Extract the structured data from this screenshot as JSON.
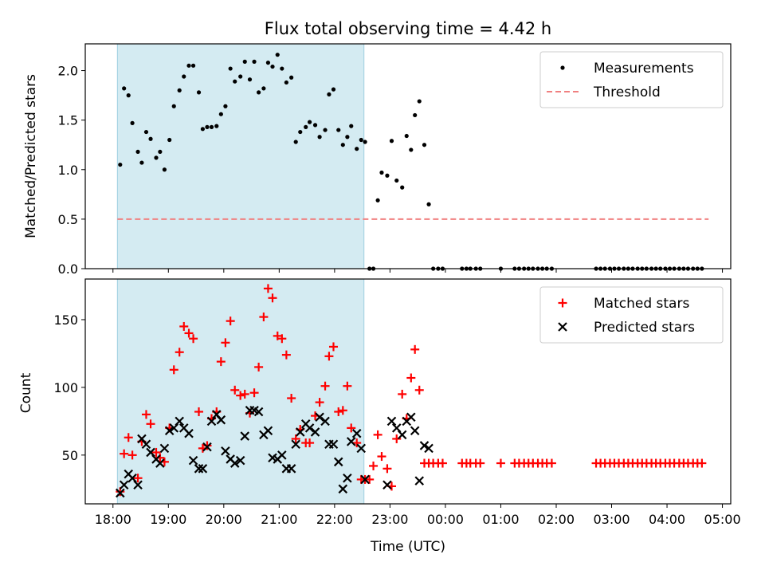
{
  "chart_data": [
    {
      "type": "scatter",
      "title": "Flux total observing time = 4.42 h",
      "xlabel": "",
      "ylabel": "Matched/Predicted stars",
      "xlim": [
        17.5,
        29.15
      ],
      "ylim": [
        0,
        2.27
      ],
      "yticks": [
        0.0,
        0.5,
        1.0,
        1.5,
        2.0
      ],
      "ytick_labels": [
        "0.0",
        "0.5",
        "1.0",
        "1.5",
        "2.0"
      ],
      "highlight_span": [
        18.08,
        22.53
      ],
      "legend": [
        "Measurements",
        "Threshold"
      ],
      "legend_loc": "upper right",
      "series": [
        {
          "name": "Measurements",
          "marker": "dot",
          "color": "#000000",
          "x": [
            18.13,
            18.2,
            18.28,
            18.35,
            18.45,
            18.52,
            18.6,
            18.68,
            18.78,
            18.85,
            18.93,
            19.02,
            19.1,
            19.2,
            19.28,
            19.37,
            19.45,
            19.55,
            19.62,
            19.7,
            19.78,
            19.87,
            19.95,
            20.03,
            20.12,
            20.2,
            20.3,
            20.38,
            20.47,
            20.55,
            20.63,
            20.72,
            20.8,
            20.88,
            20.97,
            21.05,
            21.13,
            21.22,
            21.3,
            21.38,
            21.48,
            21.55,
            21.65,
            21.73,
            21.83,
            21.9,
            21.98,
            22.07,
            22.15,
            22.23,
            22.3,
            22.4,
            22.48,
            22.55,
            22.63,
            22.7,
            22.78,
            22.85,
            22.95,
            23.03,
            23.12,
            23.22,
            23.3,
            23.38,
            23.45,
            23.53,
            23.62,
            23.7,
            23.78,
            23.87,
            23.95,
            24.3,
            24.38,
            24.45,
            24.55,
            24.63,
            25.0,
            25.25,
            25.33,
            25.42,
            25.5,
            25.58,
            25.67,
            25.75,
            25.83,
            25.92,
            26.72,
            26.8,
            26.88,
            26.97,
            27.05,
            27.13,
            27.22,
            27.3,
            27.38,
            27.47,
            27.55,
            27.63,
            27.72,
            27.8,
            27.88,
            27.97,
            28.05,
            28.13,
            28.22,
            28.3,
            28.38,
            28.47,
            28.55,
            28.63
          ],
          "y": [
            1.05,
            1.82,
            1.75,
            1.47,
            1.18,
            1.07,
            1.38,
            1.31,
            1.12,
            1.18,
            1.0,
            1.3,
            1.64,
            1.8,
            1.94,
            2.05,
            2.05,
            1.78,
            1.41,
            1.43,
            1.43,
            1.44,
            1.56,
            1.64,
            2.02,
            1.89,
            1.94,
            2.09,
            1.91,
            2.09,
            1.78,
            1.82,
            2.08,
            2.04,
            2.16,
            2.02,
            1.88,
            1.93,
            1.28,
            1.38,
            1.43,
            1.48,
            1.45,
            1.33,
            1.4,
            1.76,
            1.81,
            1.4,
            1.25,
            1.33,
            1.44,
            1.21,
            1.3,
            1.28,
            0.0,
            0.0,
            0.69,
            0.97,
            0.94,
            1.29,
            0.89,
            0.82,
            1.34,
            1.2,
            1.55,
            1.69,
            1.25,
            0.65,
            0.0,
            0.0,
            0.0,
            0.0,
            0.0,
            0.0,
            0.0,
            0.0,
            0.0,
            0.0,
            0.0,
            0.0,
            0.0,
            0.0,
            0.0,
            0.0,
            0.0,
            0.0,
            0.0,
            0.0,
            0.0,
            0.0,
            0.0,
            0.0,
            0.0,
            0.0,
            0.0,
            0.0,
            0.0,
            0.0,
            0.0,
            0.0,
            0.0,
            0.0,
            0.0,
            0.0,
            0.0,
            0.0,
            0.0,
            0.0,
            0.0,
            0.0
          ]
        },
        {
          "name": "Threshold",
          "style": "dashed",
          "color": "#f08080",
          "x": [
            18.08,
            28.75
          ],
          "y": [
            0.5,
            0.5
          ]
        }
      ]
    },
    {
      "type": "scatter",
      "title": "",
      "xlabel": "Time (UTC)",
      "ylabel": "Count",
      "xlim": [
        17.5,
        29.15
      ],
      "ylim": [
        14,
        180
      ],
      "xticks": [
        18,
        19,
        20,
        21,
        22,
        23,
        24,
        25,
        26,
        27,
        28,
        29
      ],
      "xtick_labels": [
        "18:00",
        "19:00",
        "20:00",
        "21:00",
        "22:00",
        "23:00",
        "00:00",
        "01:00",
        "02:00",
        "03:00",
        "04:00",
        "05:00"
      ],
      "yticks": [
        50,
        100,
        150
      ],
      "ytick_labels": [
        "50",
        "100",
        "150"
      ],
      "highlight_span": [
        18.08,
        22.53
      ],
      "legend": [
        "Matched stars",
        "Predicted stars"
      ],
      "legend_loc": "upper right",
      "series": [
        {
          "name": "Matched stars",
          "marker": "+",
          "color": "#ff0000",
          "x": [
            18.13,
            18.2,
            18.28,
            18.35,
            18.45,
            18.52,
            18.6,
            18.68,
            18.78,
            18.85,
            18.93,
            19.02,
            19.1,
            19.2,
            19.28,
            19.37,
            19.45,
            19.55,
            19.62,
            19.7,
            19.78,
            19.87,
            19.95,
            20.03,
            20.12,
            20.2,
            20.3,
            20.38,
            20.47,
            20.55,
            20.63,
            20.72,
            20.8,
            20.88,
            20.97,
            21.05,
            21.13,
            21.22,
            21.3,
            21.38,
            21.48,
            21.55,
            21.65,
            21.73,
            21.83,
            21.9,
            21.98,
            22.07,
            22.15,
            22.23,
            22.3,
            22.4,
            22.48,
            22.55,
            22.63,
            22.7,
            22.78,
            22.85,
            22.95,
            23.03,
            23.12,
            23.22,
            23.3,
            23.38,
            23.45,
            23.53,
            23.62,
            23.7,
            23.78,
            23.87,
            23.95,
            24.3,
            24.38,
            24.45,
            24.55,
            24.63,
            25.0,
            25.25,
            25.33,
            25.42,
            25.5,
            25.58,
            25.67,
            25.75,
            25.83,
            25.92,
            26.72,
            26.8,
            26.88,
            26.97,
            27.05,
            27.13,
            27.22,
            27.3,
            27.38,
            27.47,
            27.55,
            27.63,
            27.72,
            27.8,
            27.88,
            27.97,
            28.05,
            28.13,
            28.22,
            28.3,
            28.38,
            28.47,
            28.55,
            28.63
          ],
          "y": [
            23,
            51,
            63,
            50,
            33,
            60,
            80,
            73,
            52,
            48,
            45,
            70,
            113,
            126,
            145,
            140,
            136,
            82,
            55,
            57,
            77,
            82,
            119,
            133,
            149,
            98,
            94,
            95,
            81,
            96,
            115,
            152,
            173,
            166,
            138,
            136,
            124,
            92,
            62,
            69,
            59,
            59,
            79,
            89,
            101,
            123,
            130,
            82,
            83,
            101,
            70,
            59,
            32,
            32,
            32,
            42,
            65,
            49,
            40,
            27,
            62,
            95,
            77,
            107,
            128,
            98,
            44,
            44,
            44,
            44,
            44,
            44,
            44,
            44,
            44,
            44,
            44,
            44,
            44,
            44,
            44,
            44,
            44,
            44,
            44,
            44,
            44,
            44,
            44,
            44,
            44,
            44,
            44,
            44,
            44,
            44,
            44,
            44,
            44,
            44,
            44,
            44,
            44,
            44,
            44,
            44,
            44,
            44,
            44,
            44
          ]
        },
        {
          "name": "Predicted stars",
          "marker": "x",
          "color": "#000000",
          "x": [
            18.13,
            18.2,
            18.28,
            18.35,
            18.45,
            18.52,
            18.6,
            18.68,
            18.78,
            18.85,
            18.93,
            19.02,
            19.1,
            19.2,
            19.28,
            19.37,
            19.45,
            19.55,
            19.62,
            19.7,
            19.78,
            19.87,
            19.95,
            20.03,
            20.12,
            20.2,
            20.3,
            20.38,
            20.47,
            20.55,
            20.63,
            20.72,
            20.8,
            20.88,
            20.97,
            21.05,
            21.13,
            21.22,
            21.3,
            21.38,
            21.48,
            21.55,
            21.65,
            21.73,
            21.83,
            21.9,
            21.98,
            22.07,
            22.15,
            22.23,
            22.3,
            22.4,
            22.48,
            22.55,
            22.95,
            23.03,
            23.12,
            23.22,
            23.3,
            23.38,
            23.45,
            23.53,
            23.62,
            23.7
          ],
          "y": [
            22,
            28,
            36,
            33,
            28,
            62,
            58,
            52,
            47,
            44,
            55,
            68,
            70,
            75,
            70,
            66,
            46,
            40,
            40,
            56,
            75,
            80,
            76,
            53,
            47,
            44,
            46,
            64,
            83,
            83,
            82,
            65,
            68,
            48,
            47,
            50,
            40,
            40,
            58,
            67,
            73,
            70,
            67,
            78,
            75,
            58,
            58,
            45,
            25,
            33,
            60,
            66,
            55,
            32,
            28,
            75,
            70,
            65,
            75,
            78,
            68,
            31,
            57,
            55
          ]
        }
      ]
    }
  ]
}
